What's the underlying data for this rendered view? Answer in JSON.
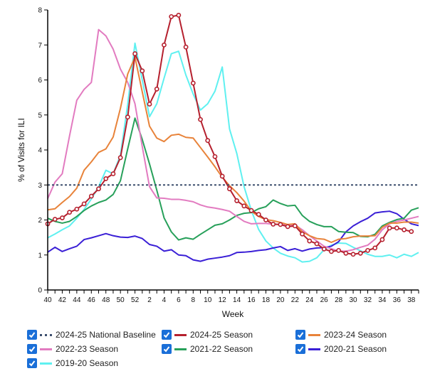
{
  "chart_data": {
    "type": "line",
    "xlabel": "Week",
    "ylabel": "% of Visits for ILI",
    "ylim": [
      0,
      8
    ],
    "yticks": [
      0,
      1,
      2,
      3,
      4,
      5,
      6,
      7,
      8
    ],
    "categories": [
      40,
      41,
      42,
      43,
      44,
      45,
      46,
      47,
      48,
      49,
      50,
      51,
      52,
      1,
      2,
      3,
      4,
      5,
      6,
      7,
      8,
      9,
      10,
      11,
      12,
      13,
      14,
      15,
      16,
      17,
      18,
      19,
      20,
      21,
      22,
      23,
      24,
      25,
      26,
      27,
      28,
      29,
      30,
      31,
      32,
      33,
      34,
      35,
      36,
      37,
      38,
      39
    ],
    "xtick_labels": [
      "40",
      "42",
      "44",
      "46",
      "48",
      "50",
      "52",
      "2",
      "4",
      "6",
      "8",
      "10",
      "12",
      "14",
      "16",
      "18",
      "20",
      "22",
      "24",
      "26",
      "28",
      "30",
      "32",
      "34",
      "36",
      "38"
    ],
    "grid": false,
    "legend_position": "bottom",
    "baseline": {
      "name": "2024-25 National Baseline",
      "value": 3.0,
      "color": "#3d4f6e",
      "style": "dotted"
    },
    "series": [
      {
        "name": "2024-25 Season",
        "color": "#b5202e",
        "markers": true,
        "values": [
          1.89,
          2.02,
          2.06,
          2.22,
          2.31,
          2.46,
          2.68,
          2.89,
          3.18,
          3.32,
          3.78,
          4.94,
          6.75,
          6.26,
          5.31,
          5.74,
          7.0,
          7.81,
          7.85,
          6.94,
          5.91,
          4.87,
          4.27,
          3.81,
          3.25,
          2.89,
          2.55,
          2.4,
          2.27,
          2.16,
          2.0,
          1.88,
          1.87,
          1.81,
          1.83,
          1.6,
          1.4,
          1.32,
          1.17,
          1.1,
          1.13,
          1.05,
          1.02,
          1.05,
          1.13,
          1.2,
          1.44,
          1.77,
          1.77,
          1.72,
          1.67,
          null
        ]
      },
      {
        "name": "2023-24 Season",
        "color": "#e8833a",
        "values": [
          2.29,
          2.32,
          2.5,
          2.67,
          2.91,
          3.42,
          3.66,
          3.93,
          4.03,
          4.37,
          5.19,
          6.17,
          6.65,
          5.66,
          4.68,
          4.34,
          4.24,
          4.42,
          4.45,
          4.36,
          4.34,
          4.07,
          3.8,
          3.52,
          3.22,
          2.98,
          2.78,
          2.54,
          2.25,
          2.1,
          2.01,
          1.98,
          1.93,
          1.87,
          1.89,
          1.66,
          1.55,
          1.47,
          1.45,
          1.36,
          1.45,
          1.47,
          1.52,
          1.54,
          1.54,
          1.55,
          1.79,
          1.91,
          1.91,
          1.94,
          1.94,
          1.91
        ]
      },
      {
        "name": "2022-23 Season",
        "color": "#e27bc0",
        "values": [
          2.61,
          3.08,
          3.32,
          4.4,
          5.42,
          5.73,
          5.93,
          7.44,
          7.26,
          6.88,
          6.31,
          5.93,
          5.32,
          4.1,
          2.95,
          2.63,
          2.62,
          2.59,
          2.59,
          2.56,
          2.52,
          2.43,
          2.37,
          2.34,
          2.3,
          2.25,
          2.1,
          1.96,
          1.89,
          1.9,
          1.9,
          1.88,
          1.87,
          1.85,
          1.86,
          1.72,
          1.55,
          1.4,
          1.25,
          1.18,
          1.11,
          1.11,
          1.15,
          1.22,
          1.28,
          1.45,
          1.72,
          1.89,
          1.96,
          2.0,
          2.05,
          2.1
        ]
      },
      {
        "name": "2021-22 Season",
        "color": "#27a05a",
        "values": [
          2.05,
          1.96,
          1.91,
          1.96,
          2.1,
          2.27,
          2.4,
          2.5,
          2.57,
          2.73,
          3.12,
          4.03,
          4.91,
          4.3,
          3.6,
          2.85,
          2.06,
          1.66,
          1.43,
          1.49,
          1.45,
          1.59,
          1.72,
          1.85,
          1.89,
          2.0,
          2.13,
          2.19,
          2.21,
          2.32,
          2.38,
          2.57,
          2.47,
          2.4,
          2.42,
          2.13,
          1.96,
          1.87,
          1.81,
          1.81,
          1.67,
          1.65,
          1.64,
          1.53,
          1.52,
          1.59,
          1.83,
          1.93,
          2.01,
          2.05,
          2.28,
          2.35
        ]
      },
      {
        "name": "2020-21 Season",
        "color": "#3a1fd6",
        "values": [
          1.08,
          1.22,
          1.1,
          1.18,
          1.25,
          1.44,
          1.49,
          1.55,
          1.61,
          1.55,
          1.51,
          1.5,
          1.54,
          1.47,
          1.3,
          1.25,
          1.11,
          1.15,
          1.0,
          0.98,
          0.86,
          0.82,
          0.88,
          0.91,
          0.94,
          0.98,
          1.07,
          1.08,
          1.1,
          1.13,
          1.15,
          1.2,
          1.24,
          1.13,
          1.18,
          1.11,
          1.17,
          1.2,
          1.21,
          1.25,
          1.38,
          1.66,
          1.83,
          1.95,
          2.05,
          2.2,
          2.23,
          2.25,
          2.18,
          2.02,
          1.89,
          1.84
        ]
      },
      {
        "name": "2019-20 Season",
        "color": "#5ff0f0",
        "values": [
          1.49,
          1.6,
          1.72,
          1.83,
          2.05,
          2.3,
          2.6,
          2.95,
          3.42,
          3.32,
          3.85,
          5.3,
          7.05,
          6.0,
          4.95,
          5.32,
          6.05,
          6.75,
          6.82,
          6.14,
          5.6,
          5.14,
          5.32,
          5.68,
          6.37,
          4.6,
          3.9,
          2.95,
          2.27,
          1.73,
          1.4,
          1.2,
          1.05,
          0.97,
          0.92,
          0.8,
          0.82,
          0.92,
          1.15,
          1.28,
          1.34,
          1.33,
          1.22,
          1.12,
          1.02,
          0.96,
          0.96,
          1.0,
          0.92,
          1.02,
          0.96,
          1.07
        ]
      }
    ]
  },
  "legend": {
    "items": [
      {
        "label": "2024-25 National Baseline",
        "color": "#3d4f6e",
        "style": "dotted",
        "checked": true
      },
      {
        "label": "2024-25 Season",
        "color": "#b5202e",
        "style": "solid",
        "checked": true
      },
      {
        "label": "2023-24 Season",
        "color": "#e8833a",
        "style": "solid",
        "checked": true
      },
      {
        "label": "2022-23 Season",
        "color": "#e27bc0",
        "style": "solid",
        "checked": true
      },
      {
        "label": "2021-22 Season",
        "color": "#27a05a",
        "style": "solid",
        "checked": true
      },
      {
        "label": "2020-21 Season",
        "color": "#3a1fd6",
        "style": "solid",
        "checked": true
      },
      {
        "label": "2019-20 Season",
        "color": "#5ff0f0",
        "style": "solid",
        "checked": true
      }
    ],
    "checkbox_color": "#1a6fd8"
  }
}
